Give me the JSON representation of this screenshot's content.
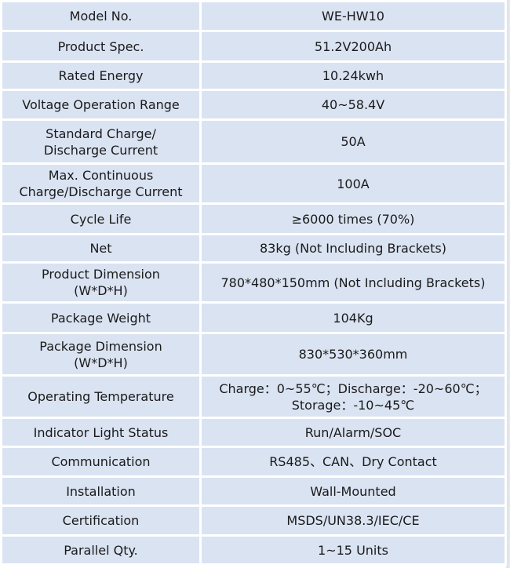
{
  "rows": [
    {
      "label": "Model No.",
      "value": "WE-HW10"
    },
    {
      "label": "Product Spec.",
      "value": "51.2V200Ah"
    },
    {
      "label": "Rated Energy",
      "value": "10.24kwh"
    },
    {
      "label": "Voltage Operation Range",
      "value": "40~58.4V"
    },
    {
      "label": "Standard Charge/\nDischarge Current",
      "value": "50A"
    },
    {
      "label": "Max. Continuous\nCharge/Discharge Current",
      "value": "100A"
    },
    {
      "label": "Cycle Life",
      "value": "≥6000 times (70%)"
    },
    {
      "label": "Net",
      "value": "83kg  (Not Including Brackets)"
    },
    {
      "label": "Product Dimension\n(W*D*H)",
      "value": "780*480*150mm  (Not Including Brackets)"
    },
    {
      "label": "Package Weight",
      "value": "104Kg"
    },
    {
      "label": "Package Dimension\n(W*D*H)",
      "value": "830*530*360mm"
    },
    {
      "label": "Operating Temperature",
      "value": "Charge：0~55℃；Discharge：-20~60℃；\nStorage：-10~45℃"
    },
    {
      "label": "Indicator Light Status",
      "value": "Run/Alarm/SOC"
    },
    {
      "label": "Communication",
      "value": "RS485、CAN、Dry Contact"
    },
    {
      "label": "Installation",
      "value": "Wall-Mounted"
    },
    {
      "label": "Certification",
      "value": "MSDS/UN38.3/IEC/CE"
    },
    {
      "label": "Parallel Qty.",
      "value": "1~15 Units"
    }
  ]
}
